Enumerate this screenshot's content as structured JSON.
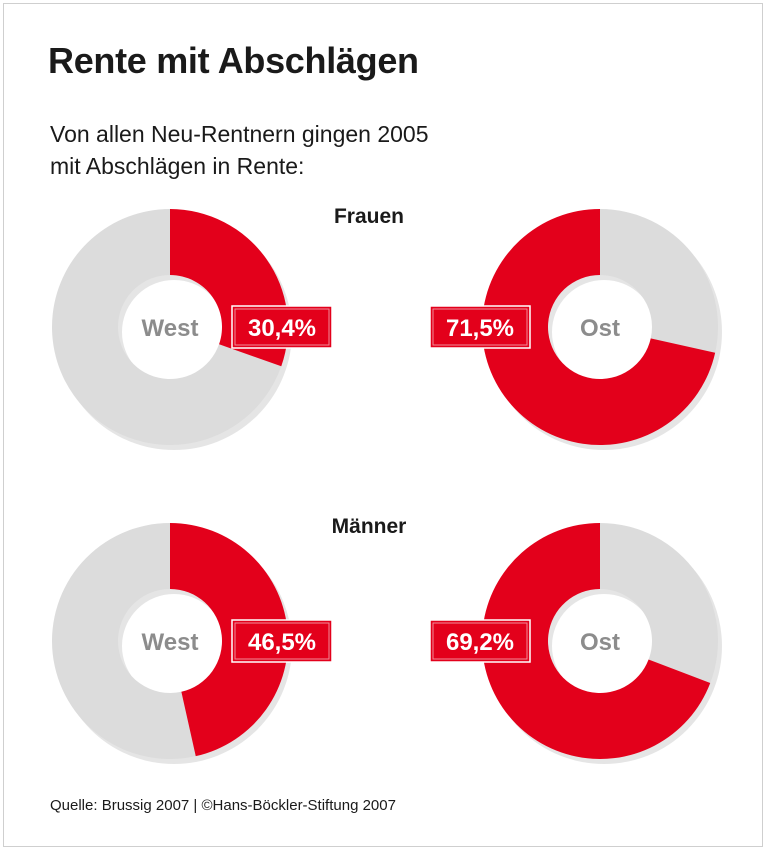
{
  "header": {
    "title": "Rente mit Abschlägen",
    "subtitle_line1": "Von allen Neu-Rentnern gingen 2005",
    "subtitle_line2": "mit Abschlägen in Rente:"
  },
  "sections": {
    "women": "Frauen",
    "men": "Männer"
  },
  "footer": {
    "source": "Quelle: Brussig 2007 | ©Hans-Böckler-Stiftung 2007"
  },
  "colors": {
    "highlight": "#e3001b",
    "remainder": "#dcdcdc",
    "center_text": "#8c8c8c"
  },
  "chart_data": [
    {
      "type": "pie",
      "group": "Frauen",
      "region": "West",
      "value": 30.4,
      "label": "30,4%"
    },
    {
      "type": "pie",
      "group": "Frauen",
      "region": "Ost",
      "value": 71.5,
      "label": "71,5%"
    },
    {
      "type": "pie",
      "group": "Männer",
      "region": "West",
      "value": 46.5,
      "label": "46,5%"
    },
    {
      "type": "pie",
      "group": "Männer",
      "region": "Ost",
      "value": 69.2,
      "label": "69,2%"
    }
  ]
}
